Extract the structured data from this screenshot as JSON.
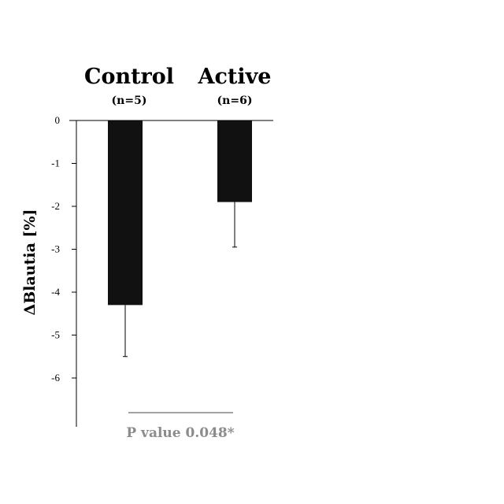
{
  "chart_data": {
    "type": "bar",
    "categories": [
      "Control",
      "Active"
    ],
    "sample_sizes": [
      "(n=5)",
      "(n=6)"
    ],
    "values": [
      -4.3,
      -1.9
    ],
    "error_lower": [
      1.2,
      1.05
    ],
    "ylabel": "ΔBlautia [%]",
    "ylim": [
      -7,
      0
    ],
    "yticks": [
      0,
      -1,
      -2,
      -3,
      -4,
      -5,
      -6
    ],
    "ytick_labels": [
      "0",
      "-1",
      "-2",
      "-3",
      "-4",
      "-5",
      "-6"
    ],
    "bar_color": "#111111",
    "grid": false,
    "legend": "none",
    "annotation": "P value 0.048*",
    "annotation_color": "#8c8c8c"
  }
}
